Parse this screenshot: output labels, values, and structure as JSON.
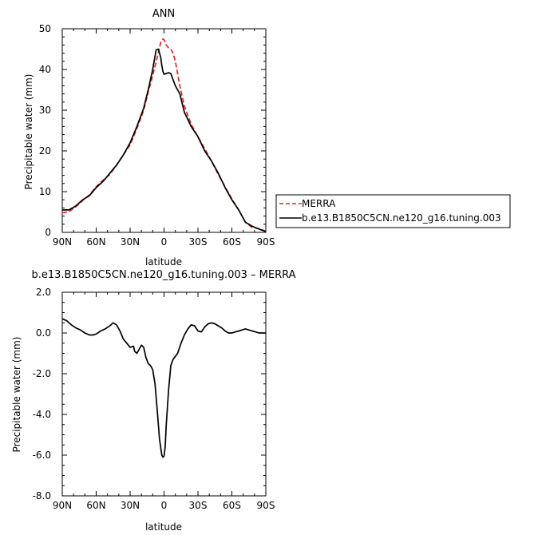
{
  "chart_data": [
    {
      "type": "line",
      "title": "ANN",
      "xlabel": "latitude",
      "ylabel": "Precipitable water (mm)",
      "xlim": [
        90,
        -90
      ],
      "ylim": [
        0,
        50
      ],
      "x_tick_labels": [
        "90N",
        "60N",
        "30N",
        "0",
        "30S",
        "60S",
        "90S"
      ],
      "y_tick_labels": [
        "0",
        "10",
        "20",
        "30",
        "40",
        "50"
      ],
      "legend_position": "right",
      "series": [
        {
          "name": "MERRA",
          "color": "#e8211d",
          "dash": "dashed",
          "x": [
            90,
            84,
            78,
            72,
            66,
            60,
            54,
            48,
            42,
            36,
            30,
            24,
            18,
            14,
            10,
            6,
            3,
            1,
            0,
            -2,
            -4,
            -6,
            -8,
            -10,
            -14,
            -18,
            -24,
            -30,
            -36,
            -42,
            -48,
            -54,
            -60,
            -66,
            -72,
            -78,
            -84,
            -90
          ],
          "y": [
            4.8,
            5.1,
            6.3,
            7.8,
            9.2,
            11.2,
            12.8,
            14.2,
            16.5,
            19.0,
            21.5,
            25.5,
            30.0,
            34.5,
            38.5,
            43.0,
            46.6,
            47.5,
            47.3,
            46.0,
            45.3,
            45.0,
            44.0,
            42.0,
            36.0,
            31.0,
            26.5,
            23.5,
            20.5,
            17.5,
            14.2,
            11.2,
            8.2,
            5.5,
            2.5,
            1.2,
            0.9,
            0.3
          ]
        },
        {
          "name": "b.e13.B1850C5CN.ne120_g16.tuning.003",
          "color": "#000000",
          "dash": "solid",
          "x": [
            90,
            84,
            78,
            72,
            66,
            60,
            54,
            48,
            42,
            36,
            30,
            24,
            18,
            14,
            10,
            7,
            5,
            3,
            2,
            1,
            0,
            -2,
            -4,
            -6,
            -8,
            -10,
            -14,
            -18,
            -24,
            -30,
            -36,
            -42,
            -48,
            -54,
            -60,
            -66,
            -72,
            -78,
            -84,
            -90
          ],
          "y": [
            5.5,
            5.5,
            6.5,
            8.0,
            9.0,
            11.0,
            12.5,
            14.5,
            16.5,
            19.0,
            22.0,
            26.0,
            30.5,
            35.0,
            40.0,
            44.8,
            45.0,
            43.0,
            41.0,
            39.5,
            38.8,
            39.0,
            39.2,
            39.0,
            37.5,
            36.0,
            34.0,
            29.5,
            26.0,
            23.5,
            20.0,
            17.5,
            14.5,
            11.0,
            8.0,
            5.5,
            2.5,
            1.5,
            0.8,
            0.2
          ]
        }
      ]
    },
    {
      "type": "line",
      "title": "b.e13.B1850C5CN.ne120_g16.tuning.003 – MERRA",
      "xlabel": "latitude",
      "ylabel": "Precipitable water (mm)",
      "xlim": [
        90,
        -90
      ],
      "ylim": [
        -8,
        2
      ],
      "x_tick_labels": [
        "90N",
        "60N",
        "30N",
        "0",
        "30S",
        "60S",
        "90S"
      ],
      "y_tick_labels": [
        "2.0",
        "0.0",
        "-2.0",
        "-4.0",
        "-6.0",
        "-8.0"
      ],
      "series": [
        {
          "color": "#000000",
          "dash": "solid",
          "x": [
            90,
            86,
            82,
            78,
            74,
            70,
            66,
            63,
            60,
            56,
            52,
            48,
            45,
            42,
            39,
            36,
            33,
            30,
            27,
            26,
            24,
            22,
            20,
            18,
            16,
            14,
            12,
            10,
            8,
            6,
            4,
            2,
            1,
            0,
            -1,
            -2,
            -4,
            -6,
            -8,
            -10,
            -12,
            -15,
            -18,
            -21,
            -24,
            -27,
            -30,
            -33,
            -36,
            -39,
            -42,
            -45,
            -48,
            -51,
            -54,
            -57,
            -60,
            -63,
            -66,
            -69,
            -72,
            -75,
            -78,
            -81,
            -84,
            -87,
            -90
          ],
          "y": [
            0.7,
            0.6,
            0.4,
            0.25,
            0.15,
            0.0,
            -0.1,
            -0.1,
            -0.05,
            0.1,
            0.2,
            0.35,
            0.5,
            0.4,
            0.1,
            -0.3,
            -0.5,
            -0.7,
            -0.65,
            -0.9,
            -1.0,
            -0.8,
            -0.6,
            -0.7,
            -1.2,
            -1.5,
            -1.6,
            -1.8,
            -2.5,
            -3.8,
            -5.2,
            -6.0,
            -6.1,
            -6.05,
            -5.6,
            -4.5,
            -2.8,
            -1.6,
            -1.3,
            -1.15,
            -1.0,
            -0.5,
            -0.1,
            0.2,
            0.4,
            0.35,
            0.1,
            0.05,
            0.3,
            0.45,
            0.5,
            0.45,
            0.35,
            0.25,
            0.1,
            0.0,
            0.0,
            0.05,
            0.1,
            0.15,
            0.2,
            0.15,
            0.1,
            0.05,
            0.0,
            0.0,
            0.0
          ]
        }
      ]
    }
  ],
  "legend_labels": [
    "MERRA",
    "b.e13.B1850C5CN.ne120_g16.tuning.003"
  ]
}
